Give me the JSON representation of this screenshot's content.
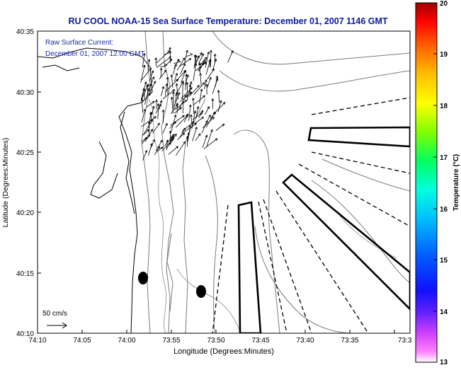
{
  "title": "RU COOL  NOAA-15  Sea Surface Temperature:  December 01, 2007 1146 GMT",
  "annotation": {
    "line1": "Raw Surface Current:",
    "line2": "December 01, 2007 12:00 GMT"
  },
  "axes": {
    "xlabel": "Longitude (Degrees:Minutes)",
    "ylabel": "Latitude (Degrees:Minutes)",
    "x_ticks": [
      "74:10",
      "74:05",
      "74:00",
      "73:55",
      "73:50",
      "73:45",
      "73:40",
      "73:35",
      "73:3"
    ],
    "y_ticks": [
      "40:35",
      "40:30",
      "40:25",
      "40:20",
      "40:15",
      "40:10"
    ]
  },
  "scale": {
    "label": "50 cm/s"
  },
  "colorbar": {
    "label": "Temperature (°C)",
    "ticks": [
      "20",
      "19",
      "18",
      "17",
      "16",
      "15",
      "14",
      "13"
    ],
    "min": 13,
    "max": 20
  },
  "colors": {
    "title": "#0a1a9a",
    "annotation": "#1a2aa0"
  }
}
